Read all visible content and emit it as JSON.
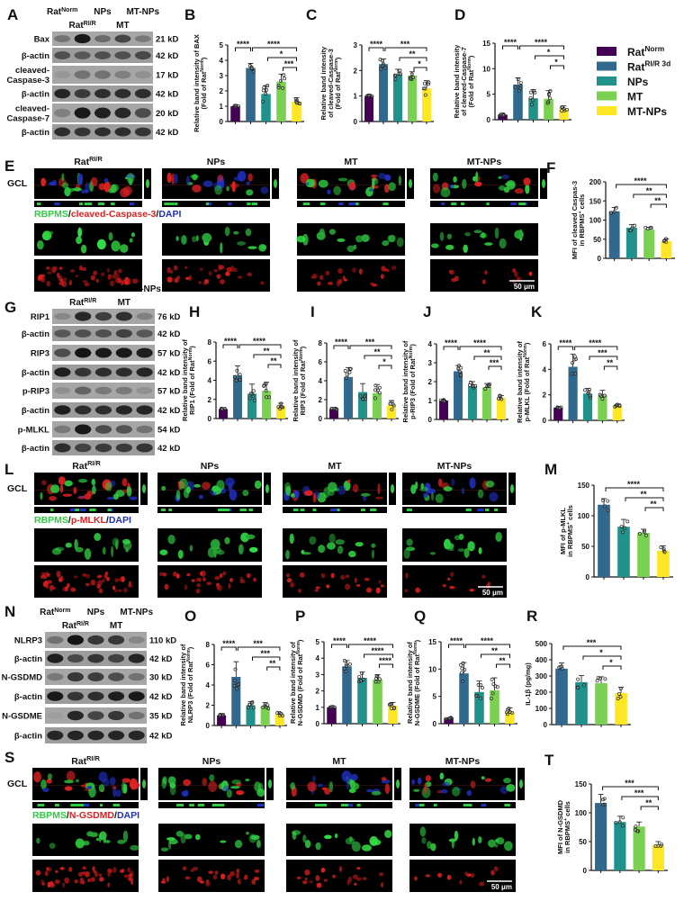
{
  "figure": {
    "panel_letters": {
      "A": "A",
      "B": "B",
      "C": "C",
      "D": "D",
      "E": "E",
      "F": "F",
      "G": "G",
      "H": "H",
      "I": "I",
      "J": "J",
      "K": "K",
      "L": "L",
      "M": "M",
      "N": "N",
      "O": "O",
      "P": "P",
      "Q": "Q",
      "R": "R",
      "S": "S",
      "T": "T"
    },
    "legend": {
      "items": [
        {
          "label": "Rat^{Norm}",
          "color": "#440154"
        },
        {
          "label": "Rat^{RI/R 3d}",
          "color": "#31688e"
        },
        {
          "label": "NPs",
          "color": "#21918c"
        },
        {
          "label": "MT",
          "color": "#7ad151"
        },
        {
          "label": "MT-NPs",
          "color": "#fde725"
        }
      ]
    },
    "blots": [
      {
        "id": "A",
        "lanes": [
          "Rat^{Norm}",
          "Rat^{RI/R}",
          "NPs",
          "MT",
          "MT-NPs"
        ],
        "rows": [
          {
            "label": "Bax",
            "kd": "21 kD",
            "intensity": [
              0.35,
              0.95,
              0.4,
              0.65,
              0.3
            ]
          },
          {
            "label": "β-actin",
            "kd": "42 kD",
            "intensity": [
              0.55,
              0.5,
              0.55,
              0.55,
              0.6
            ]
          },
          {
            "label": "cleaved-\nCaspase-3",
            "kd": "17 kD",
            "intensity": [
              0.1,
              0.35,
              0.35,
              0.25,
              0.15
            ]
          },
          {
            "label": "β-actin",
            "kd": "42 kD",
            "intensity": [
              0.85,
              0.7,
              0.8,
              0.8,
              0.8
            ]
          },
          {
            "label": "cleaved-\nCaspase-7",
            "kd": "20 kD",
            "intensity": [
              0.25,
              0.95,
              0.9,
              0.85,
              0.6
            ]
          },
          {
            "label": "β-actin",
            "kd": "42 kD",
            "intensity": [
              0.8,
              0.75,
              0.8,
              0.8,
              0.75
            ]
          }
        ]
      },
      {
        "id": "G",
        "lanes": [
          "Rat^{Norm}",
          "Rat^{RI/R}",
          "NPs",
          "MT",
          "MT-NPs"
        ],
        "rows": [
          {
            "label": "RIP1",
            "kd": "76 kD",
            "intensity": [
              0.2,
              0.85,
              0.7,
              0.8,
              0.25
            ]
          },
          {
            "label": "β-actin",
            "kd": "42 kD",
            "intensity": [
              0.5,
              0.55,
              0.55,
              0.65,
              0.5
            ]
          },
          {
            "label": "RIP3",
            "kd": "57 kD",
            "intensity": [
              0.6,
              0.98,
              0.95,
              0.95,
              0.9
            ]
          },
          {
            "label": "β-actin",
            "kd": "42 kD",
            "intensity": [
              0.9,
              0.75,
              0.8,
              0.8,
              0.85
            ]
          },
          {
            "label": "p-RIP3",
            "kd": "57 kD",
            "intensity": [
              0.15,
              0.45,
              0.3,
              0.3,
              0.15
            ]
          },
          {
            "label": "β-actin",
            "kd": "42 kD",
            "intensity": [
              0.9,
              0.8,
              0.8,
              0.85,
              0.85
            ]
          },
          {
            "label": "p-MLKL",
            "kd": "54 kD",
            "intensity": [
              0.3,
              0.95,
              0.6,
              0.55,
              0.35
            ]
          },
          {
            "label": "β-actin",
            "kd": "42 kD",
            "intensity": [
              0.8,
              0.65,
              0.7,
              0.7,
              0.75
            ]
          }
        ]
      },
      {
        "id": "N",
        "lanes": [
          "Rat^{Norm}",
          "Rat^{RI/R}",
          "NPs",
          "MT",
          "MT-NPs"
        ],
        "rows": [
          {
            "label": "NLRP3",
            "kd": "110 kD",
            "intensity": [
              0.35,
              0.98,
              0.75,
              0.75,
              0.2
            ]
          },
          {
            "label": "β-actin",
            "kd": "42 kD",
            "intensity": [
              0.9,
              0.6,
              0.75,
              0.65,
              0.85
            ]
          },
          {
            "label": "N-GSDMD",
            "kd": "30 kD",
            "intensity": [
              0.3,
              0.75,
              0.7,
              0.6,
              0.35
            ]
          },
          {
            "label": "β-actin",
            "kd": "42 kD",
            "intensity": [
              0.95,
              0.75,
              0.8,
              0.9,
              0.95
            ]
          },
          {
            "label": "N-GSDME",
            "kd": "35 kD",
            "intensity": [
              0.05,
              0.85,
              0.65,
              0.75,
              0.35
            ]
          },
          {
            "label": "β-actin",
            "kd": "42 kD",
            "intensity": [
              0.85,
              0.85,
              0.85,
              0.85,
              0.85
            ]
          }
        ]
      }
    ],
    "micro": [
      {
        "id": "E",
        "row_label": "GCL",
        "columns": [
          "Rat^{RI/R}",
          "NPs",
          "MT",
          "MT-NPs"
        ],
        "caption": [
          {
            "text": "RBPMS",
            "color": "#2ecc40"
          },
          {
            "text": "/",
            "color": "#111111"
          },
          {
            "text": "cleaved-Caspase-3",
            "color": "#e02020"
          },
          {
            "text": "/",
            "color": "#111111"
          },
          {
            "text": "DAPI",
            "color": "#1f2fbf"
          }
        ],
        "scale_bar": "50 μm"
      },
      {
        "id": "L",
        "row_label": "GCL",
        "columns": [
          "Rat^{RI/R}",
          "NPs",
          "MT",
          "MT-NPs"
        ],
        "caption": [
          {
            "text": "RBPMS",
            "color": "#2ecc40"
          },
          {
            "text": "/",
            "color": "#111111"
          },
          {
            "text": "p-MLKL",
            "color": "#e02020"
          },
          {
            "text": "/",
            "color": "#111111"
          },
          {
            "text": "DAPI",
            "color": "#1f2fbf"
          }
        ],
        "scale_bar": "50 μm"
      },
      {
        "id": "S",
        "row_label": "GCL",
        "columns": [
          "Rat^{RI/R}",
          "NPs",
          "MT",
          "MT-NPs"
        ],
        "caption": [
          {
            "text": "RBPMS",
            "color": "#2ecc40"
          },
          {
            "text": "/",
            "color": "#111111"
          },
          {
            "text": "N-GSDMD",
            "color": "#e02020"
          },
          {
            "text": "/",
            "color": "#111111"
          },
          {
            "text": "DAPI",
            "color": "#1f2fbf"
          }
        ],
        "scale_bar": "50 μm"
      }
    ]
  },
  "chart_data": [
    {
      "id": "B",
      "type": "bar",
      "categories": [
        "Rat^{Norm}",
        "Rat^{RI/R 3d}",
        "NPs",
        "MT",
        "MT-NPs"
      ],
      "values": [
        1.0,
        3.5,
        1.8,
        2.6,
        1.3
      ],
      "error": [
        0.05,
        0.3,
        0.55,
        0.5,
        0.25
      ],
      "ylim": [
        0,
        5
      ],
      "yticks": [
        0,
        1,
        2,
        3,
        4,
        5
      ],
      "ylabel": [
        "Relative band intensity of BAX",
        "(Fold of Rat^{Norm})"
      ],
      "significance": [
        [
          0,
          1,
          "****"
        ],
        [
          1,
          4,
          "****"
        ],
        [
          2,
          4,
          "*"
        ],
        [
          3,
          4,
          "***"
        ]
      ]
    },
    {
      "id": "C",
      "type": "bar",
      "categories": [
        "Rat^{Norm}",
        "Rat^{RI/R 3d}",
        "NPs",
        "MT",
        "MT-NPs"
      ],
      "values": [
        1.0,
        2.25,
        1.85,
        1.8,
        1.3
      ],
      "error": [
        0.03,
        0.2,
        0.2,
        0.15,
        0.3
      ],
      "ylim": [
        0,
        3
      ],
      "yticks": [
        0,
        1,
        2,
        3
      ],
      "ylabel": [
        "Relative band intensity",
        "of cleaved-Caspase-3",
        "(Fold of Rat^{Norm})"
      ],
      "significance": [
        [
          0,
          1,
          "****"
        ],
        [
          1,
          4,
          "***"
        ],
        [
          2,
          4,
          "**"
        ],
        [
          3,
          4,
          "*"
        ]
      ]
    },
    {
      "id": "D",
      "type": "bar",
      "categories": [
        "Rat^{Norm}",
        "Rat^{RI/R 3d}",
        "NPs",
        "MT",
        "MT-NPs"
      ],
      "values": [
        1.0,
        6.9,
        4.2,
        4.1,
        2.2
      ],
      "error": [
        0.1,
        1.3,
        1.7,
        1.6,
        0.5
      ],
      "ylim": [
        0,
        15
      ],
      "yticks": [
        0,
        5,
        10,
        15
      ],
      "ylabel": [
        "Relative band intensity",
        "of cleaved-Caspase-7",
        "(Fold of Rat^{Norm})"
      ],
      "significance": [
        [
          0,
          1,
          "****"
        ],
        [
          1,
          4,
          "****"
        ],
        [
          2,
          4,
          "*"
        ],
        [
          3,
          4,
          "*"
        ]
      ]
    },
    {
      "id": "F",
      "type": "bar",
      "categories": [
        "Rat^{RI/R 3d}",
        "NPs",
        "MT",
        "MT-NPs"
      ],
      "values": [
        123,
        80,
        75,
        45
      ],
      "error": [
        10,
        8,
        6,
        6
      ],
      "ylim": [
        0,
        200
      ],
      "yticks": [
        0,
        50,
        100,
        150,
        200
      ],
      "ylabel": [
        "MFI of cleaved Caspas-3",
        "in RBPMS^{+} cells"
      ],
      "significance": [
        [
          0,
          3,
          "****"
        ],
        [
          1,
          3,
          "**"
        ],
        [
          2,
          3,
          "**"
        ]
      ]
    },
    {
      "id": "H",
      "type": "bar",
      "categories": [
        "Rat^{Norm}",
        "Rat^{RI/R 3d}",
        "NPs",
        "MT",
        "MT-NPs"
      ],
      "values": [
        1.0,
        4.5,
        2.6,
        2.9,
        1.3
      ],
      "error": [
        0.05,
        1.0,
        1.0,
        0.9,
        0.3
      ],
      "ylim": [
        0,
        8
      ],
      "yticks": [
        0,
        2,
        4,
        6,
        8
      ],
      "ylabel": [
        "Relative band intensity of",
        "RIP1 (Fold of Rat^{Norm})"
      ],
      "significance": [
        [
          0,
          1,
          "****"
        ],
        [
          1,
          4,
          "****"
        ],
        [
          2,
          4,
          "**"
        ],
        [
          3,
          4,
          "**"
        ]
      ]
    },
    {
      "id": "I",
      "type": "bar",
      "categories": [
        "Rat^{Norm}",
        "Rat^{RI/R 3d}",
        "NPs",
        "MT",
        "MT-NPs"
      ],
      "values": [
        1.0,
        4.4,
        2.8,
        2.7,
        1.4
      ],
      "error": [
        0.05,
        1.0,
        0.9,
        0.9,
        0.5
      ],
      "ylim": [
        0,
        8
      ],
      "yticks": [
        0,
        2,
        4,
        6,
        8
      ],
      "ylabel": [
        "Relative band intensity of",
        "RIP3 (Fold of Rat^{Norm})"
      ],
      "significance": [
        [
          0,
          1,
          "****"
        ],
        [
          1,
          4,
          "***"
        ],
        [
          2,
          4,
          "**"
        ],
        [
          3,
          4,
          "*"
        ]
      ]
    },
    {
      "id": "J",
      "type": "bar",
      "categories": [
        "Rat^{Norm}",
        "Rat^{RI/R 3d}",
        "NPs",
        "MT",
        "MT-NPs"
      ],
      "values": [
        1.0,
        2.55,
        1.75,
        1.7,
        1.15
      ],
      "error": [
        0.03,
        0.3,
        0.25,
        0.2,
        0.12
      ],
      "ylim": [
        0,
        4
      ],
      "yticks": [
        0,
        1,
        2,
        3,
        4
      ],
      "ylabel": [
        "Relative band intensity of",
        "p-RIP3 (Fold of Rat^{Norm})"
      ],
      "significance": [
        [
          0,
          1,
          "****"
        ],
        [
          1,
          4,
          "****"
        ],
        [
          2,
          4,
          "**"
        ],
        [
          3,
          4,
          "***"
        ]
      ]
    },
    {
      "id": "K",
      "type": "bar",
      "categories": [
        "Rat^{Norm}",
        "Rat^{RI/R 3d}",
        "NPs",
        "MT",
        "MT-NPs"
      ],
      "values": [
        1.0,
        4.2,
        2.1,
        1.95,
        1.15
      ],
      "error": [
        0.05,
        1.0,
        0.4,
        0.4,
        0.1
      ],
      "ylim": [
        0,
        6
      ],
      "yticks": [
        0,
        2,
        4,
        6
      ],
      "ylabel": [
        "Relative band intensity of",
        "p-MLKL (Fold of Rat^{Norm})"
      ],
      "significance": [
        [
          0,
          1,
          "****"
        ],
        [
          1,
          4,
          "****"
        ],
        [
          2,
          4,
          "***"
        ],
        [
          3,
          4,
          "**"
        ]
      ]
    },
    {
      "id": "M",
      "type": "bar",
      "categories": [
        "Rat^{RI/R 3d}",
        "NPs",
        "MT",
        "MT-NPs"
      ],
      "values": [
        118,
        82,
        72,
        43
      ],
      "error": [
        10,
        12,
        6,
        8
      ],
      "ylim": [
        0,
        150
      ],
      "yticks": [
        0,
        50,
        100,
        150
      ],
      "ylabel": [
        "MFI of p-MLKL",
        "in RBPMS^{+} cells"
      ],
      "significance": [
        [
          0,
          3,
          "****"
        ],
        [
          1,
          3,
          "**"
        ],
        [
          2,
          3,
          "**"
        ]
      ]
    },
    {
      "id": "O",
      "type": "bar",
      "categories": [
        "Rat^{Norm}",
        "Rat^{RI/R 3d}",
        "NPs",
        "MT",
        "MT-NPs"
      ],
      "values": [
        1.0,
        4.8,
        2.0,
        1.9,
        1.1
      ],
      "error": [
        0.05,
        1.5,
        0.35,
        0.35,
        0.15
      ],
      "ylim": [
        0,
        8
      ],
      "yticks": [
        0,
        2,
        4,
        6,
        8
      ],
      "ylabel": [
        "Relative band intensity of",
        "NLRP3 (Fold of Rat^{Norm})"
      ],
      "significance": [
        [
          0,
          1,
          "****"
        ],
        [
          1,
          4,
          "***"
        ],
        [
          2,
          4,
          "***"
        ],
        [
          3,
          4,
          "**"
        ]
      ]
    },
    {
      "id": "P",
      "type": "bar",
      "categories": [
        "Rat^{Norm}",
        "Rat^{RI/R 3d}",
        "NPs",
        "MT",
        "MT-NPs"
      ],
      "values": [
        1.0,
        3.5,
        2.8,
        2.7,
        1.1
      ],
      "error": [
        0.03,
        0.35,
        0.35,
        0.3,
        0.2
      ],
      "ylim": [
        0,
        5
      ],
      "yticks": [
        0,
        1,
        2,
        3,
        4,
        5
      ],
      "ylabel": [
        "Relative band intensity of",
        "N-GSDMD (Fold of Rat^{Norm})"
      ],
      "significance": [
        [
          0,
          1,
          "****"
        ],
        [
          1,
          4,
          "****"
        ],
        [
          2,
          4,
          "****"
        ],
        [
          3,
          4,
          "****"
        ]
      ]
    },
    {
      "id": "Q",
      "type": "bar",
      "categories": [
        "Rat^{Norm}",
        "Rat^{RI/R 3d}",
        "NPs",
        "MT",
        "MT-NPs"
      ],
      "values": [
        1.0,
        9.2,
        5.8,
        6.1,
        2.2
      ],
      "error": [
        0.1,
        2.0,
        2.0,
        2.3,
        0.7
      ],
      "ylim": [
        0,
        15
      ],
      "yticks": [
        0,
        5,
        10,
        15
      ],
      "ylabel": [
        "Relative band intensity of",
        "N-GSDME (Fold of Rat^{Norm})"
      ],
      "significance": [
        [
          0,
          1,
          "****"
        ],
        [
          1,
          4,
          "****"
        ],
        [
          2,
          4,
          "**"
        ],
        [
          3,
          4,
          "**"
        ]
      ]
    },
    {
      "id": "R",
      "type": "bar",
      "categories": [
        "Rat^{RI/R 3d}",
        "NPs",
        "MT",
        "MT-NPs"
      ],
      "values": [
        345,
        262,
        255,
        195
      ],
      "error": [
        35,
        40,
        40,
        35
      ],
      "ylim": [
        0,
        500
      ],
      "yticks": [
        0,
        100,
        200,
        300,
        400,
        500
      ],
      "ylabel": [
        "IL-1β (pg/mg)"
      ],
      "significance": [
        [
          0,
          3,
          "***"
        ],
        [
          1,
          3,
          "*"
        ],
        [
          2,
          3,
          "*"
        ]
      ]
    },
    {
      "id": "T",
      "type": "bar",
      "categories": [
        "Rat^{RI/R 3d}",
        "NPs",
        "MT",
        "MT-NPs"
      ],
      "values": [
        117,
        84,
        76,
        44
      ],
      "error": [
        15,
        10,
        8,
        6
      ],
      "ylim": [
        0,
        150
      ],
      "yticks": [
        0,
        50,
        100,
        150
      ],
      "ylabel": [
        "MFI of N-GSDMD",
        "in RBPMS^{+} cells"
      ],
      "significance": [
        [
          0,
          3,
          "***"
        ],
        [
          1,
          3,
          "***"
        ],
        [
          2,
          3,
          "**"
        ]
      ]
    }
  ]
}
